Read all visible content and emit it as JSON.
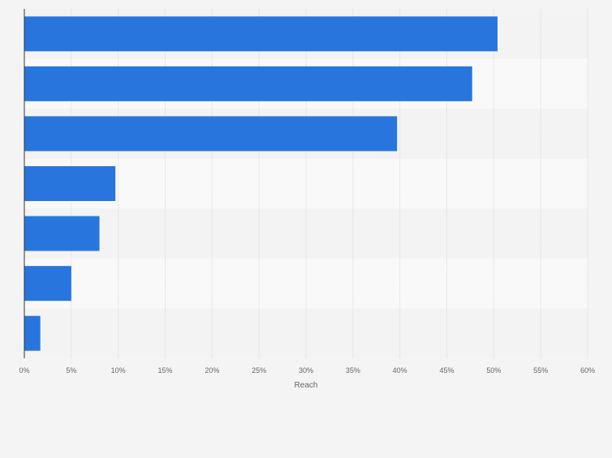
{
  "colors": {
    "background": "#f4f4f4",
    "band_light": "#f9f9f9",
    "band_dark": "#f3f3f3",
    "bar": "#2876dd",
    "grid": "#d9d9d9",
    "axis": "#333333",
    "tick_text": "#666666"
  },
  "chart_data": {
    "type": "bar",
    "orientation": "horizontal",
    "categories": [
      "",
      "",
      "",
      "",
      "",
      "",
      ""
    ],
    "values": [
      50.4,
      47.7,
      39.7,
      9.7,
      8.0,
      5.0,
      1.7
    ],
    "xlabel": "Reach",
    "ylabel": "",
    "xlim": [
      0,
      60
    ],
    "xticks": [
      "0%",
      "5%",
      "10%",
      "15%",
      "20%",
      "25%",
      "30%",
      "35%",
      "40%",
      "45%",
      "50%",
      "55%",
      "60%"
    ],
    "grid": true,
    "legend": "none"
  }
}
